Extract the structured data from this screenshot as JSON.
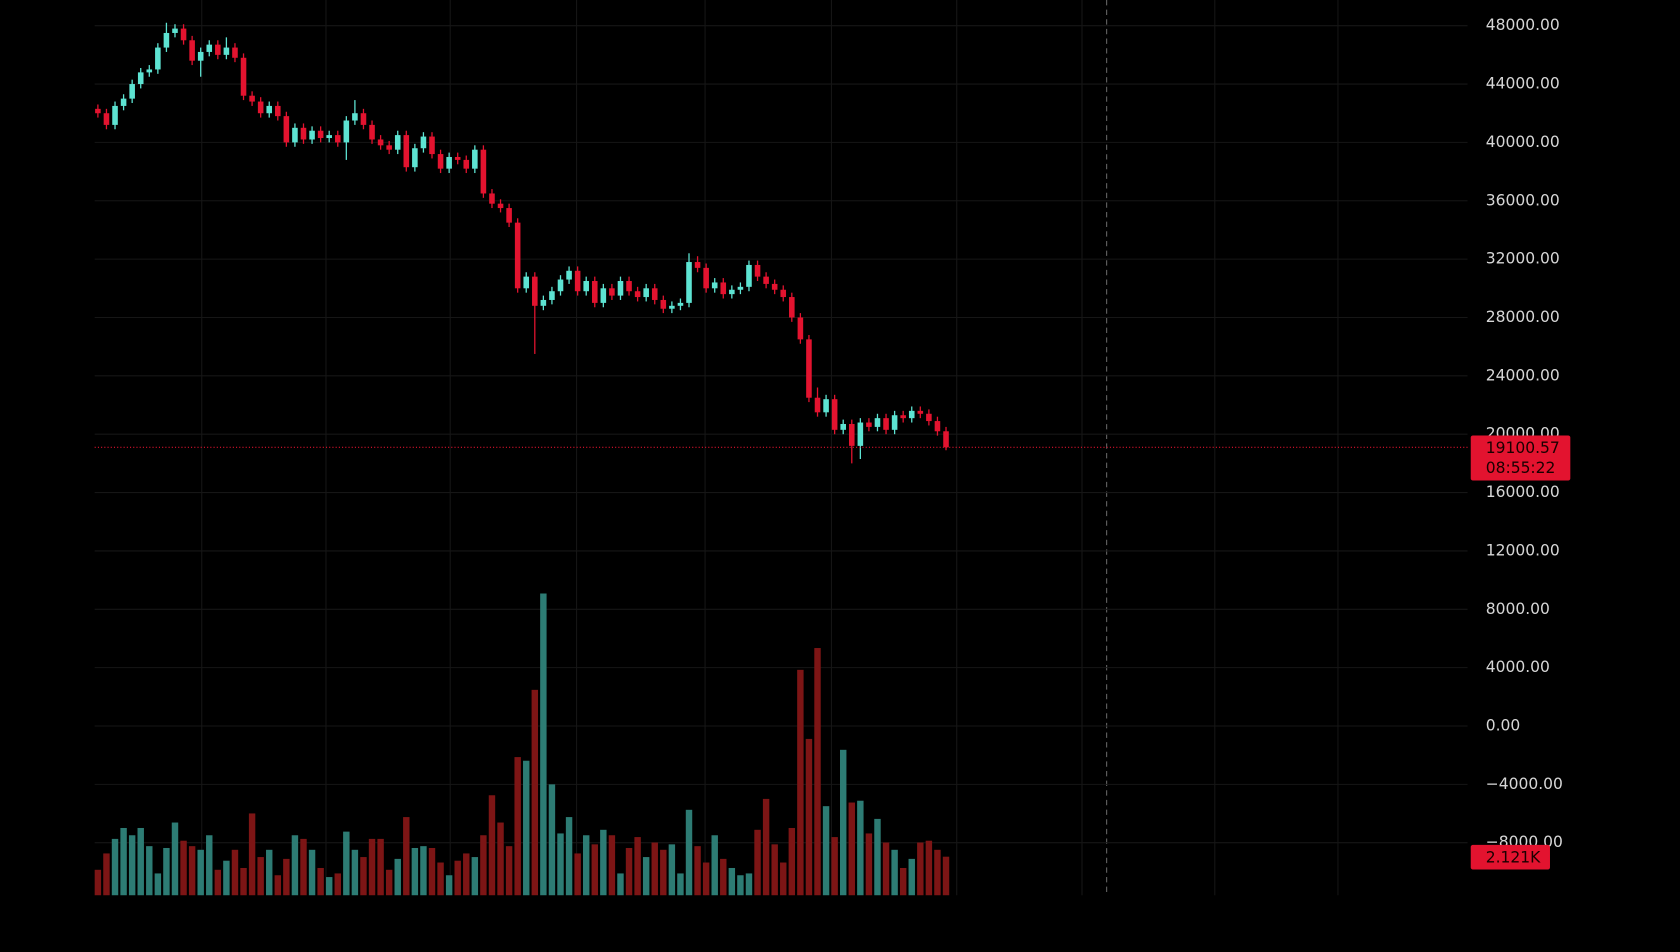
{
  "chart_data": {
    "type": "candlestick",
    "last_price": {
      "value": 19100.57,
      "label": "19100.57"
    },
    "countdown": "08:55:22",
    "last_volume": {
      "value": 2121,
      "label": "2.121K"
    },
    "up_color": "#5de3d2",
    "down_color": "#e3132f",
    "volume_up_color": "#2d7c74",
    "volume_down_color": "#7d1515",
    "ylim": [
      -11600,
      49760
    ],
    "volume_ylim": [
      0,
      49250
    ],
    "grid": true,
    "yticks": [
      {
        "value": 48000,
        "label": "48000.00"
      },
      {
        "value": 44000,
        "label": "44000.00"
      },
      {
        "value": 40000,
        "label": "40000.00"
      },
      {
        "value": 36000,
        "label": "36000.00"
      },
      {
        "value": 32000,
        "label": "32000.00"
      },
      {
        "value": 28000,
        "label": "28000.00"
      },
      {
        "value": 24000,
        "label": "24000.00"
      },
      {
        "value": 20000,
        "label": "20000.00"
      },
      {
        "value": 16000,
        "label": "16000.00"
      },
      {
        "value": 12000,
        "label": "12000.00"
      },
      {
        "value": 8000,
        "label": "8000.00"
      },
      {
        "value": 4000,
        "label": "4000.00"
      },
      {
        "value": 0,
        "label": "0.00"
      },
      {
        "value": -4000,
        "label": "−4000.00"
      },
      {
        "value": -8000,
        "label": "−8000.00"
      }
    ],
    "open": [
      42300,
      42000,
      41200,
      42500,
      43000,
      44000,
      44800,
      45000,
      46500,
      47500,
      47800,
      47000,
      45600,
      46200,
      46700,
      46000,
      46500,
      45800,
      43200,
      42800,
      42000,
      42500,
      41800,
      40000,
      41000,
      40200,
      40800,
      40300,
      40500,
      40000,
      41500,
      42000,
      41200,
      40200,
      39800,
      39500,
      40500,
      38300,
      39600,
      40400,
      39200,
      38200,
      39000,
      38800,
      38200,
      39500,
      36500,
      35800,
      35500,
      34500,
      30000,
      30800,
      28800,
      29200,
      29800,
      30600,
      31200,
      29800,
      30500,
      29000,
      30000,
      29500,
      30500,
      29800,
      29400,
      30000,
      29200,
      28600,
      28800,
      29000,
      31800,
      31400,
      30000,
      30400,
      29600,
      29900,
      30100,
      31600,
      30800,
      30300,
      29900,
      29400,
      28000,
      26500,
      22500,
      21500,
      22400,
      20300,
      20700,
      19200,
      20800,
      20500,
      21100,
      20300,
      21300,
      21100,
      21600,
      21400,
      20900,
      20200
    ],
    "high": [
      42600,
      42300,
      42800,
      43300,
      44300,
      45100,
      45300,
      46800,
      48200,
      48100,
      48100,
      47300,
      46500,
      47000,
      47000,
      47200,
      46800,
      46100,
      43500,
      43100,
      42800,
      42800,
      42100,
      41300,
      41300,
      41100,
      41100,
      40800,
      40800,
      41800,
      42900,
      42300,
      41500,
      40500,
      40100,
      40800,
      40800,
      39900,
      40700,
      40700,
      39500,
      39300,
      39300,
      39100,
      39800,
      39800,
      36800,
      36100,
      35800,
      34800,
      31100,
      31100,
      29500,
      30100,
      30900,
      31500,
      31500,
      30800,
      30800,
      30300,
      30300,
      30800,
      30800,
      30100,
      30300,
      30300,
      29500,
      29100,
      29300,
      32400,
      32200,
      31700,
      30700,
      30700,
      30200,
      30400,
      31900,
      31900,
      31100,
      30600,
      30200,
      29700,
      28300,
      26800,
      23200,
      22700,
      22700,
      21000,
      21000,
      21100,
      21100,
      21400,
      21400,
      21600,
      21600,
      21900,
      21900,
      21700,
      21200,
      20500
    ],
    "low": [
      41700,
      40900,
      40900,
      42200,
      42700,
      43700,
      44500,
      44700,
      46200,
      47200,
      46700,
      45300,
      44500,
      45900,
      45700,
      45700,
      45500,
      42900,
      42500,
      41700,
      41700,
      41500,
      39700,
      39700,
      39900,
      39900,
      40000,
      40000,
      39700,
      38800,
      41200,
      40900,
      39900,
      39500,
      39200,
      39200,
      38000,
      38000,
      39300,
      38900,
      37900,
      37900,
      38500,
      37900,
      37900,
      36200,
      35500,
      35200,
      34200,
      29700,
      29700,
      25500,
      28500,
      28900,
      29500,
      30300,
      29500,
      29500,
      28700,
      28700,
      29200,
      29200,
      29500,
      29100,
      29100,
      28900,
      28300,
      28300,
      28500,
      28700,
      31100,
      29700,
      29700,
      29300,
      29300,
      29600,
      29800,
      30500,
      30000,
      29600,
      29100,
      27700,
      26200,
      22200,
      21200,
      21200,
      20000,
      20000,
      18000,
      18300,
      20200,
      20200,
      20000,
      20000,
      20800,
      20800,
      21100,
      20600,
      19900,
      18900
    ],
    "close": [
      42000,
      41200,
      42500,
      43000,
      44000,
      44800,
      45000,
      46500,
      47500,
      47800,
      47000,
      45600,
      46200,
      46700,
      46000,
      46500,
      45800,
      43200,
      42800,
      42000,
      42500,
      41800,
      40000,
      41000,
      40200,
      40800,
      40300,
      40500,
      40000,
      41500,
      42000,
      41200,
      40200,
      39800,
      39500,
      40500,
      38300,
      39600,
      40400,
      39200,
      38200,
      39000,
      38800,
      38200,
      39500,
      36500,
      35800,
      35500,
      34500,
      30000,
      30800,
      28800,
      29200,
      29800,
      30600,
      31200,
      29800,
      30500,
      29000,
      30000,
      29500,
      30500,
      29800,
      29400,
      30000,
      29200,
      28600,
      28800,
      29000,
      31800,
      31400,
      30000,
      30400,
      29600,
      29900,
      30100,
      31600,
      30800,
      30300,
      29900,
      29400,
      28000,
      26500,
      22500,
      21500,
      22400,
      20300,
      20700,
      19200,
      20800,
      20500,
      21100,
      20300,
      21300,
      21100,
      21600,
      21400,
      20900,
      20200,
      19100.57
    ],
    "volume": [
      1400,
      2300,
      3100,
      3700,
      3300,
      3700,
      2700,
      1200,
      2600,
      4000,
      3000,
      2700,
      2500,
      3300,
      1400,
      1900,
      2500,
      1500,
      4500,
      2100,
      2500,
      1100,
      2000,
      3300,
      3100,
      2500,
      1500,
      1000,
      1200,
      3500,
      2500,
      2100,
      3100,
      3100,
      1400,
      2000,
      4300,
      2600,
      2700,
      2600,
      1800,
      1100,
      1900,
      2300,
      2100,
      3300,
      5500,
      4000,
      2700,
      7600,
      7400,
      11300,
      16600,
      6100,
      3400,
      4300,
      2300,
      3300,
      2800,
      3600,
      3300,
      1200,
      2600,
      3200,
      2100,
      2900,
      2500,
      2800,
      1200,
      4700,
      2700,
      1800,
      3300,
      2000,
      1500,
      1100,
      1200,
      3600,
      5300,
      2800,
      1800,
      3700,
      12400,
      8600,
      13600,
      4900,
      3200,
      8000,
      5100,
      5200,
      3400,
      4200,
      2900,
      2500,
      1500,
      2000,
      2900,
      3000,
      2500,
      2121
    ]
  }
}
